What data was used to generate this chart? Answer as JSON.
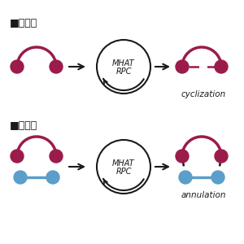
{
  "bg_color": "#ffffff",
  "crimson": "#9B1B4B",
  "blue": "#5B9EC9",
  "black": "#1a1a1a",
  "label1": "■従来法",
  "label2": "■新反応",
  "mhat_line1": "MHAT",
  "mhat_line2": "RPC",
  "cyclization_text": "cyclization",
  "annulation_text": "annulation"
}
